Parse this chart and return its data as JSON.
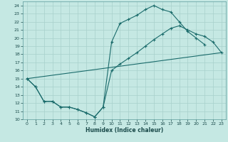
{
  "xlabel": "Humidex (Indice chaleur)",
  "bg_color": "#c5e8e3",
  "grid_color": "#a8d0cc",
  "line_color": "#1a6b6b",
  "xlim": [
    -0.5,
    23.5
  ],
  "ylim": [
    10,
    24.5
  ],
  "xticks": [
    0,
    1,
    2,
    3,
    4,
    5,
    6,
    7,
    8,
    9,
    10,
    11,
    12,
    13,
    14,
    15,
    16,
    17,
    18,
    19,
    20,
    21,
    22,
    23
  ],
  "yticks": [
    10,
    11,
    12,
    13,
    14,
    15,
    16,
    17,
    18,
    19,
    20,
    21,
    22,
    23,
    24
  ],
  "line1_x": [
    0,
    1,
    2,
    3,
    4,
    5,
    6,
    7,
    8,
    9,
    10,
    11,
    12,
    13,
    14,
    15,
    16,
    17,
    18,
    19,
    20,
    21
  ],
  "line1_y": [
    15.0,
    14.0,
    12.2,
    12.2,
    11.5,
    11.5,
    11.2,
    10.8,
    10.3,
    11.5,
    19.5,
    21.8,
    22.3,
    22.8,
    23.5,
    24.0,
    23.5,
    23.2,
    22.0,
    20.8,
    20.0,
    19.2
  ],
  "line2_x": [
    0,
    1,
    2,
    3,
    4,
    5,
    6,
    7,
    8,
    9,
    10,
    11,
    12,
    13,
    14,
    15,
    16,
    17,
    18,
    19,
    20,
    21,
    22,
    23
  ],
  "line2_y": [
    15.0,
    14.0,
    12.2,
    12.2,
    11.5,
    11.5,
    11.2,
    10.8,
    10.3,
    11.5,
    16.0,
    16.8,
    17.5,
    18.2,
    19.0,
    19.8,
    20.5,
    21.2,
    21.5,
    21.0,
    20.5,
    20.2,
    19.5,
    18.2
  ],
  "line3_x": [
    0,
    23
  ],
  "line3_y": [
    15.0,
    18.2
  ]
}
